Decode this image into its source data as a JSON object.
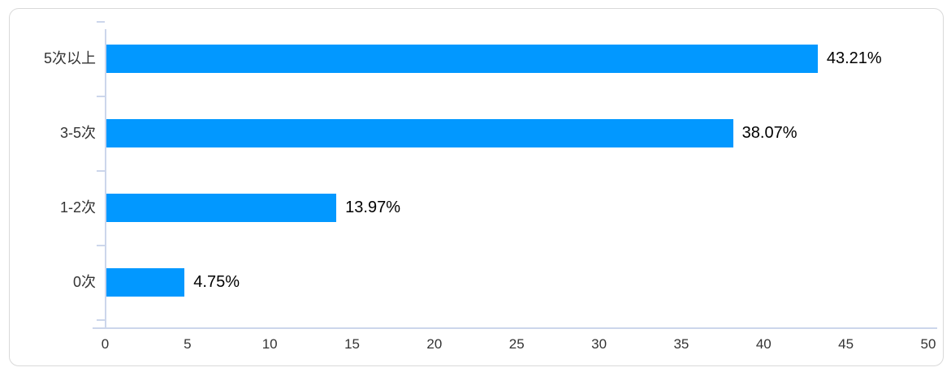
{
  "chart_data": {
    "type": "bar",
    "orientation": "horizontal",
    "title": "",
    "categories": [
      "5次以上",
      "3-5次",
      "1-2次",
      "0次"
    ],
    "values": [
      43.21,
      38.07,
      13.97,
      4.75
    ],
    "data_labels": [
      "43.21%",
      "38.07%",
      "13.97%",
      "4.75%"
    ],
    "x_ticks": [
      "0",
      "5",
      "10",
      "15",
      "20",
      "25",
      "30",
      "35",
      "40",
      "45",
      "50"
    ],
    "xlim": [
      0,
      50
    ],
    "xlabel": "",
    "ylabel": "",
    "grid": "off",
    "legend": "none",
    "bar_color": "#0298ff",
    "axis_color": "#ccd6eb",
    "category_label_color": "#333333",
    "tick_label_color": "#333333",
    "value_label_color": "#000000",
    "card_background": "#ffffff",
    "card_border_color": "#d9d9d9"
  }
}
